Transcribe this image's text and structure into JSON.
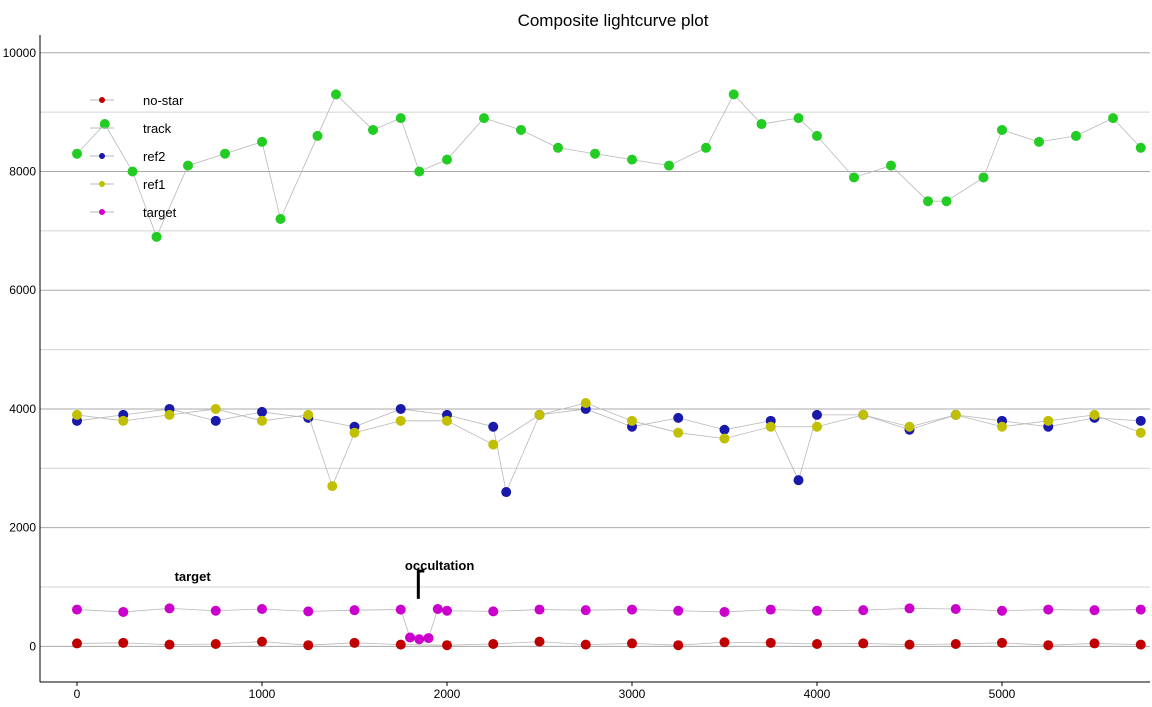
{
  "chart_data": {
    "type": "scatter",
    "title": "Composite lightcurve plot",
    "xlabel": "",
    "ylabel": "",
    "xlim": [
      -200,
      5800
    ],
    "ylim": [
      -600,
      10300
    ],
    "x_ticks": [
      0,
      1000,
      2000,
      3000,
      4000,
      5000
    ],
    "x_tick_labels": [
      "0",
      "1000",
      "2000",
      "3000",
      "4000",
      "5000"
    ],
    "y_ticks": [
      0,
      2000,
      4000,
      6000,
      8000,
      10000
    ],
    "y_tick_labels": [
      "0",
      "2000",
      "4000",
      "6000",
      "8000",
      "10000"
    ],
    "grid": "horizontal",
    "legend_position": "top-left",
    "legend": [
      "no-star",
      "track",
      "ref2",
      "ref1",
      "target"
    ],
    "annotations": [
      {
        "text": "target",
        "x": 625,
        "y": 1100
      },
      {
        "text": "occultation",
        "x": 1960,
        "y": 1290
      }
    ],
    "series": [
      {
        "name": "no-star",
        "color": "#c00000",
        "x": [
          0,
          250,
          500,
          750,
          1000,
          1250,
          1500,
          1750,
          2000,
          2250,
          2500,
          2750,
          3000,
          3250,
          3500,
          3750,
          4000,
          4250,
          4500,
          4750,
          5000,
          5250,
          5500,
          5750
        ],
        "y": [
          50,
          60,
          30,
          40,
          80,
          20,
          60,
          30,
          20,
          40,
          80,
          30,
          50,
          20,
          70,
          60,
          40,
          50,
          30,
          40,
          60,
          20,
          50,
          30
        ]
      },
      {
        "name": "track",
        "color": "#a0a0a0",
        "x": [],
        "y": []
      },
      {
        "name": "ref2",
        "color": "#1a1aaa",
        "x": [
          0,
          250,
          500,
          750,
          1000,
          1250,
          1500,
          1750,
          2000,
          2250,
          2320,
          2500,
          2750,
          3000,
          3250,
          3500,
          3750,
          3900,
          4000,
          4250,
          4500,
          4750,
          5000,
          5250,
          5500,
          5750
        ],
        "y": [
          3800,
          3900,
          4000,
          3800,
          3950,
          3850,
          3700,
          4000,
          3900,
          3700,
          2600,
          3900,
          4000,
          3700,
          3850,
          3650,
          3800,
          2800,
          3900,
          3900,
          3650,
          3900,
          3800,
          3700,
          3850,
          3800
        ]
      },
      {
        "name": "ref1",
        "color": "#c0c000",
        "x": [
          0,
          250,
          500,
          750,
          1000,
          1250,
          1380,
          1500,
          1750,
          2000,
          2250,
          2500,
          2750,
          3000,
          3250,
          3500,
          3750,
          4000,
          4250,
          4500,
          4750,
          5000,
          5250,
          5500,
          5750
        ],
        "y": [
          3900,
          3800,
          3900,
          4000,
          3800,
          3900,
          2700,
          3600,
          3800,
          3800,
          3400,
          3900,
          4100,
          3800,
          3600,
          3500,
          3700,
          3700,
          3900,
          3700,
          3900,
          3700,
          3800,
          3900,
          3600
        ]
      },
      {
        "name": "target",
        "color": "#cc00cc",
        "x": [
          0,
          250,
          500,
          750,
          1000,
          1250,
          1500,
          1750,
          1800,
          1850,
          1900,
          1950,
          2000,
          2250,
          2500,
          2750,
          3000,
          3250,
          3500,
          3750,
          4000,
          4250,
          4500,
          4750,
          5000,
          5250,
          5500,
          5750
        ],
        "y": [
          620,
          580,
          640,
          600,
          630,
          590,
          610,
          620,
          150,
          120,
          140,
          630,
          600,
          590,
          620,
          610,
          620,
          600,
          580,
          620,
          600,
          610,
          640,
          630,
          600,
          620,
          610,
          620
        ]
      },
      {
        "name": "",
        "color": "#22cc22",
        "x": [
          0,
          150,
          300,
          430,
          600,
          800,
          1000,
          1100,
          1300,
          1400,
          1600,
          1750,
          1850,
          2000,
          2200,
          2400,
          2600,
          2800,
          3000,
          3200,
          3400,
          3550,
          3700,
          3900,
          4000,
          4200,
          4400,
          4600,
          4700,
          4900,
          5000,
          5200,
          5400,
          5600,
          5750
        ],
        "y": [
          8300,
          8800,
          8000,
          6900,
          8100,
          8300,
          8500,
          7200,
          8600,
          9300,
          8700,
          8900,
          8000,
          8200,
          8900,
          8700,
          8400,
          8300,
          8200,
          8100,
          8400,
          9300,
          8800,
          8900,
          8600,
          7900,
          8100,
          7500,
          7500,
          7900,
          8700,
          8500,
          8600,
          8900,
          8400
        ]
      }
    ]
  }
}
